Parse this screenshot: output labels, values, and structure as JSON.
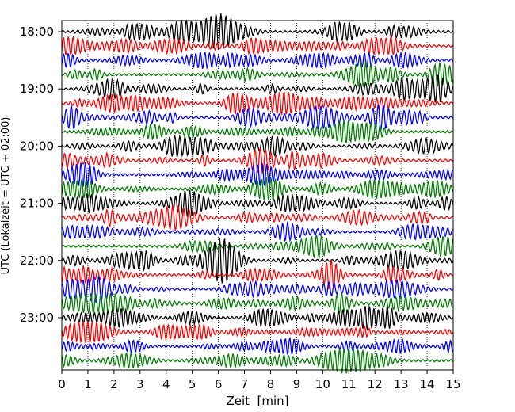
{
  "chart_data": {
    "type": "line",
    "title": "",
    "xlabel": "Zeit  [min]",
    "ylabel": "UTC (Lokalzeit = UTC + 02:00)",
    "xlim": [
      0,
      15
    ],
    "x_ticks": [
      "0",
      "1",
      "2",
      "3",
      "4",
      "5",
      "6",
      "7",
      "8",
      "9",
      "10",
      "11",
      "12",
      "13",
      "14",
      "15"
    ],
    "y_ticks": [
      "18:00",
      "19:00",
      "20:00",
      "21:00",
      "22:00",
      "23:00"
    ],
    "trace_interval_min": 15,
    "trace_start": "18:00",
    "trace_count": 24,
    "trace_colors": [
      "#000000",
      "#ff0000",
      "#0000ff",
      "#008000"
    ],
    "grid": "vertical dotted lines at each minute"
  }
}
